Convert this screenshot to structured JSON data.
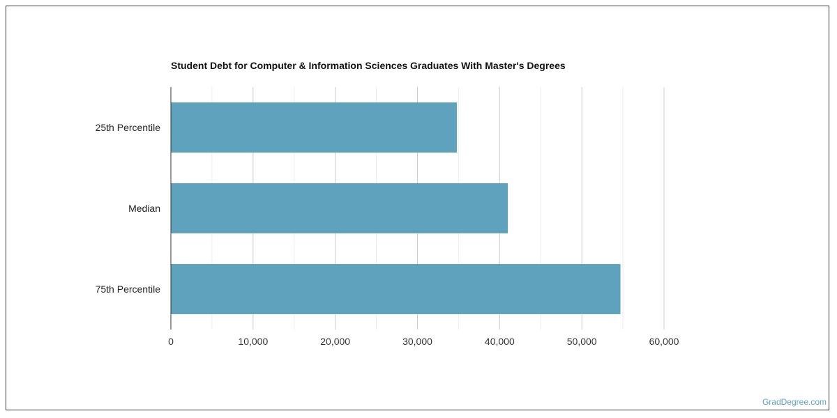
{
  "chart_data": {
    "type": "bar",
    "orientation": "horizontal",
    "title": "Student Debt for Computer & Information Sciences Graduates With Master's Degrees",
    "categories": [
      "25th Percentile",
      "Median",
      "75th Percentile"
    ],
    "values": [
      34800,
      41000,
      54700
    ],
    "xlim": [
      0,
      60000
    ],
    "xticks": [
      0,
      10000,
      20000,
      30000,
      40000,
      50000,
      60000
    ],
    "xtick_labels": [
      "0",
      "10,000",
      "20,000",
      "30,000",
      "40,000",
      "50,000",
      "60,000"
    ],
    "xlabel": "",
    "ylabel": "",
    "grid": true,
    "bar_color": "#5fa2be"
  },
  "watermark": "GradDegree.com"
}
